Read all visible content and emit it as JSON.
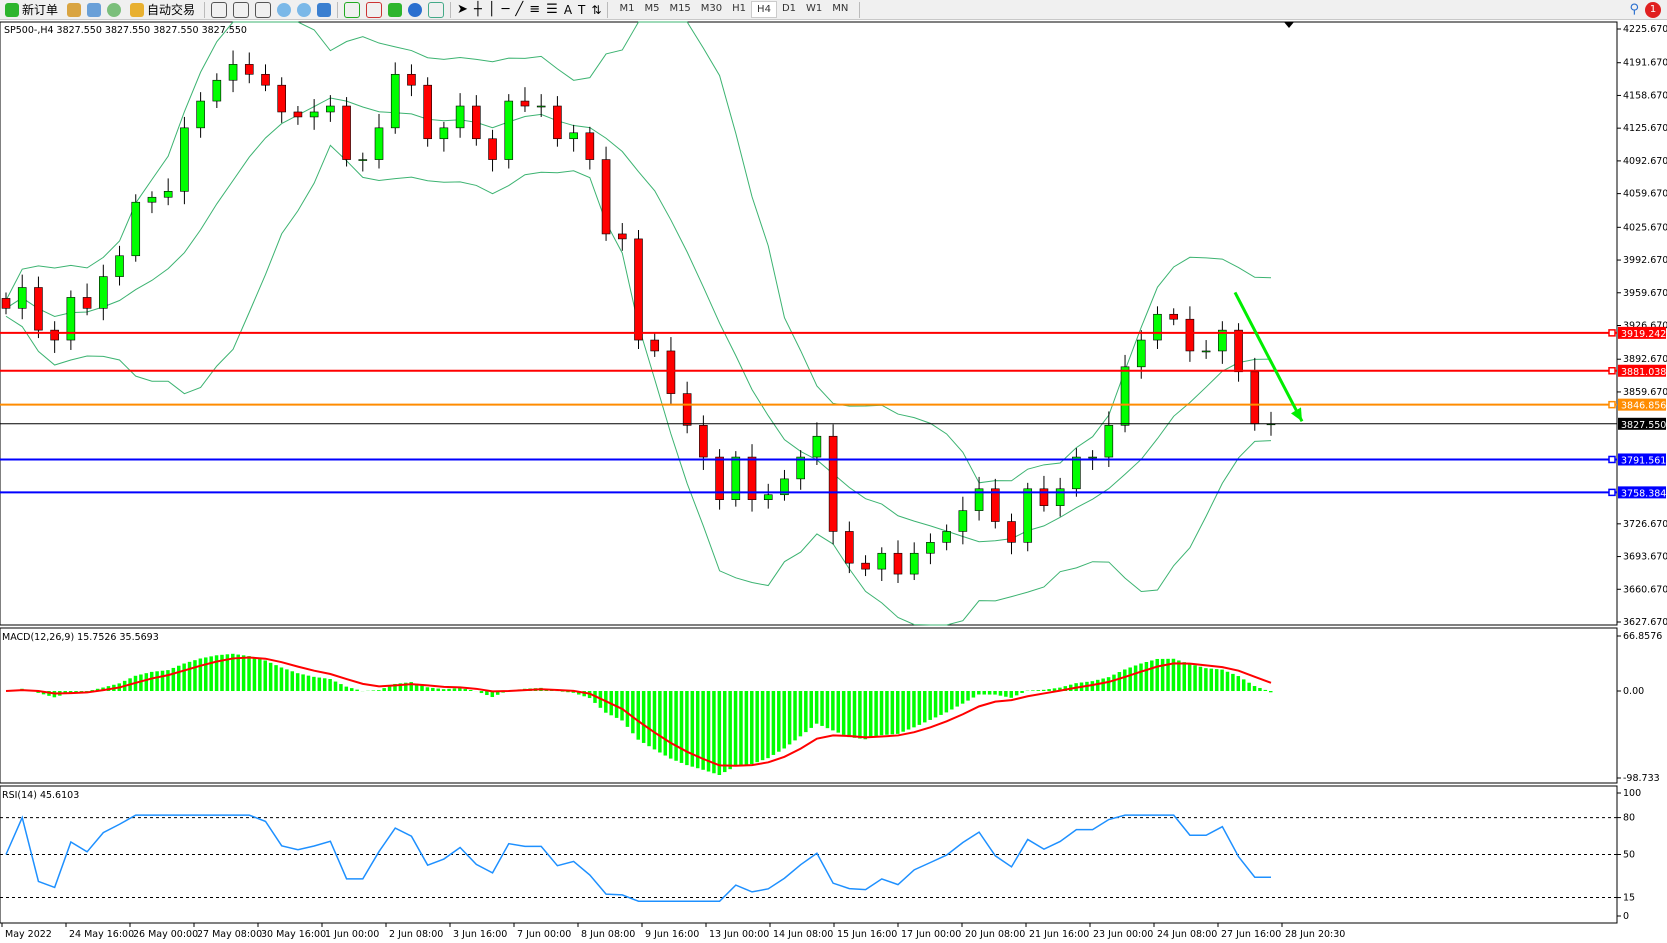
{
  "toolbar": {
    "new_order": "新订单",
    "auto_trade": "自动交易",
    "timeframes": [
      "M1",
      "M5",
      "M15",
      "M30",
      "H1",
      "H4",
      "D1",
      "W1",
      "MN"
    ],
    "active_timeframe": "H4",
    "notification_count": "1"
  },
  "chart_data": [
    {
      "type": "candlestick",
      "title": "SP500-,H4  3827.550 3827.550 3827.550 3827.550",
      "symbol": "SP500-",
      "timeframe": "H4",
      "ylim": [
        3627.67,
        4225.67
      ],
      "y_ticks": [
        "4225.670",
        "4191.670",
        "4158.670",
        "4125.670",
        "4092.670",
        "4059.670",
        "4025.670",
        "3992.670",
        "3959.670",
        "3926.670",
        "3892.670",
        "3859.670",
        "3726.670",
        "3693.670",
        "3660.670",
        "3627.670"
      ],
      "x_ticks": [
        "May 2022",
        "24 May 16:00",
        "26 May 00:00",
        "27 May 08:00",
        "30 May 16:00",
        "1 Jun 00:00",
        "2 Jun 08:00",
        "3 Jun 16:00",
        "7 Jun 00:00",
        "8 Jun 08:00",
        "9 Jun 16:00",
        "13 Jun 00:00",
        "14 Jun 08:00",
        "15 Jun 16:00",
        "17 Jun 00:00",
        "20 Jun 08:00",
        "21 Jun 16:00",
        "23 Jun 00:00",
        "24 Jun 08:00",
        "27 Jun 16:00",
        "28 Jun 20:30"
      ],
      "closes": [
        3944,
        3965,
        3922,
        3912,
        3955,
        3944,
        3976,
        3997,
        4051,
        4056,
        4062,
        4126,
        4153,
        4174,
        4190,
        4180,
        4169,
        4142,
        4137,
        4142,
        4148,
        4094,
        4094,
        4126,
        4180,
        4169,
        4115,
        4126,
        4148,
        4115,
        4094,
        4153,
        4148,
        4148,
        4115,
        4121,
        4094,
        4019,
        4014,
        3912,
        3901,
        3858,
        3826,
        3794,
        3751,
        3794,
        3751,
        3756,
        3772,
        3794,
        3815,
        3719,
        3687,
        3681,
        3697,
        3676,
        3697,
        3708,
        3719,
        3740,
        3762,
        3729,
        3708,
        3762,
        3745,
        3762,
        3794,
        3794,
        3826,
        3885,
        3912,
        3938,
        3933,
        3901,
        3901,
        3922,
        3880,
        3827.55,
        3827.55
      ],
      "up_color": "#00ff00",
      "down_color": "#ff0000",
      "indicator": "Bollinger Bands",
      "band_color": "#3cb371",
      "horizontal_lines": [
        {
          "price": 3919.242,
          "label": "3919.242",
          "color": "#ff0000"
        },
        {
          "price": 3881.038,
          "label": "3881.038",
          "color": "#ff0000"
        },
        {
          "price": 3846.856,
          "label": "3846.856",
          "color": "#ff8c00"
        },
        {
          "price": 3827.55,
          "label": "3827.550",
          "color": "#000000"
        },
        {
          "price": 3791.561,
          "label": "3791.561",
          "color": "#0000ff"
        },
        {
          "price": 3758.384,
          "label": "3758.384",
          "color": "#0000ff"
        }
      ],
      "trend_arrow": {
        "color": "#00ee00",
        "direction": "down",
        "from_price": 3960,
        "to_price": 3830
      }
    },
    {
      "type": "bar+line",
      "title": "MACD(12,26,9) 15.7526 35.5693",
      "ylim": [
        -98.733,
        66.8576
      ],
      "y_ticks": [
        "66.8576",
        "0.00",
        "-98.733"
      ],
      "histogram_color": "#00ff00",
      "signal_color": "#ff0000"
    },
    {
      "type": "line",
      "title": "RSI(14) 45.6103",
      "ylim": [
        0,
        100
      ],
      "y_ticks": [
        "100",
        "80",
        "50",
        "15",
        "0"
      ],
      "levels": [
        80,
        50,
        15
      ],
      "line_color": "#1e90ff"
    }
  ]
}
